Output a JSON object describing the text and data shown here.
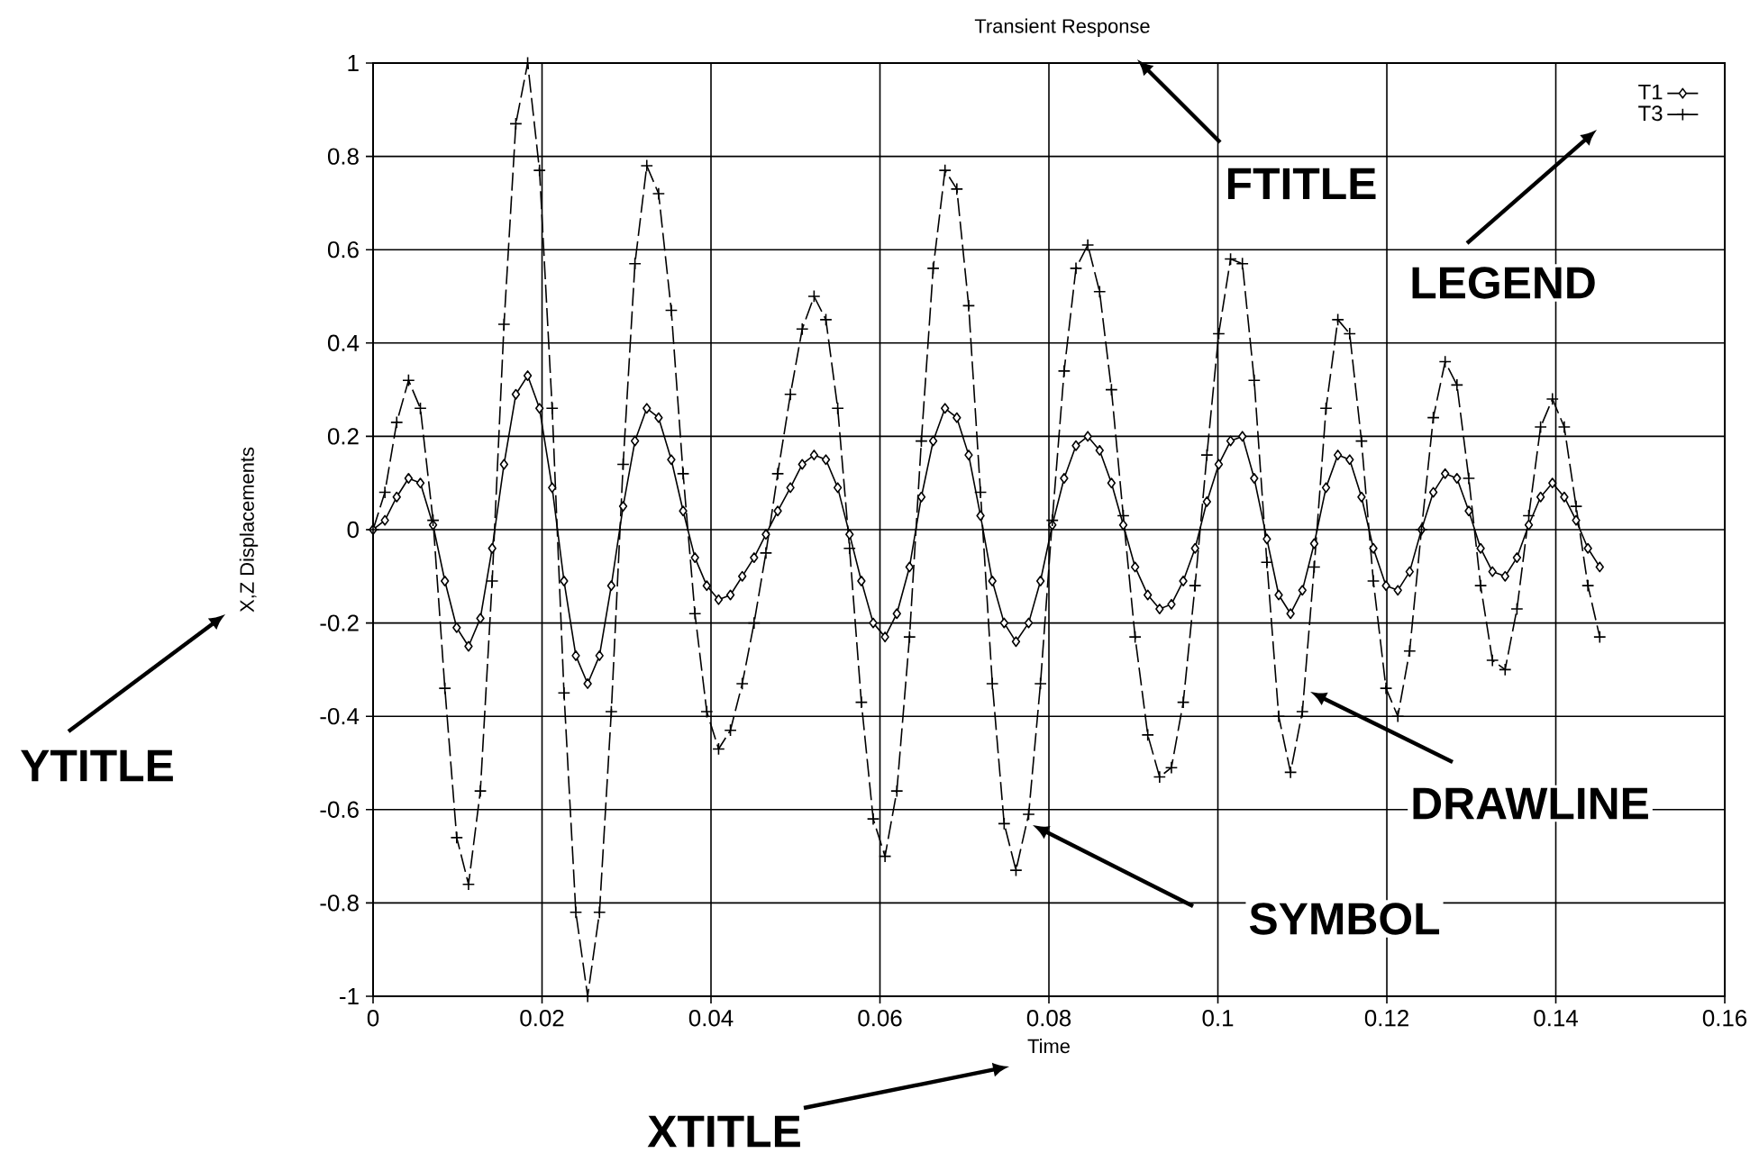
{
  "chart_data": {
    "type": "line",
    "title": "Transient Response",
    "xlabel": "Time",
    "ylabel": "X,Z Displacements",
    "x": [
      0,
      0.0014,
      0.0028,
      0.0042,
      0.0056,
      0.0071,
      0.0085,
      0.0099,
      0.0113,
      0.0127,
      0.0141,
      0.0155,
      0.0169,
      0.0183,
      0.0197,
      0.0212,
      0.0226,
      0.024,
      0.0254,
      0.0268,
      0.0282,
      0.0296,
      0.031,
      0.0324,
      0.0338,
      0.0353,
      0.0367,
      0.0381,
      0.0395,
      0.0409,
      0.0423,
      0.0437,
      0.0451,
      0.0465,
      0.0479,
      0.0494,
      0.0508,
      0.0522,
      0.0536,
      0.055,
      0.0564,
      0.0578,
      0.0592,
      0.0606,
      0.062,
      0.0635,
      0.0649,
      0.0663,
      0.0677,
      0.0691,
      0.0705,
      0.0719,
      0.0733,
      0.0747,
      0.0761,
      0.0776,
      0.079,
      0.0804,
      0.0818,
      0.0832,
      0.0846,
      0.086,
      0.0874,
      0.0888,
      0.0902,
      0.0917,
      0.0931,
      0.0945,
      0.0959,
      0.0973,
      0.0987,
      0.1001,
      0.1015,
      0.1029,
      0.1043,
      0.1058,
      0.1072,
      0.1086,
      0.11,
      0.1114,
      0.1128,
      0.1142,
      0.1156,
      0.117,
      0.1184,
      0.1199,
      0.1213,
      0.1227,
      0.1241,
      0.1255,
      0.1269,
      0.1283,
      0.1297,
      0.1311,
      0.1325,
      0.134,
      0.1354,
      0.1368,
      0.1382,
      0.1396,
      0.141,
      0.1424,
      0.1438,
      0.1452
    ],
    "series": [
      {
        "name": "T1",
        "color": "#000000",
        "marker": "diamond",
        "line_style": "solid",
        "values": [
          0,
          0.02,
          0.07,
          0.11,
          0.1,
          0.01,
          -0.11,
          -0.21,
          -0.25,
          -0.19,
          -0.04,
          0.14,
          0.29,
          0.33,
          0.26,
          0.09,
          -0.11,
          -0.27,
          -0.33,
          -0.27,
          -0.12,
          0.05,
          0.19,
          0.26,
          0.24,
          0.15,
          0.04,
          -0.06,
          -0.12,
          -0.15,
          -0.14,
          -0.1,
          -0.06,
          -0.01,
          0.04,
          0.09,
          0.14,
          0.16,
          0.15,
          0.09,
          -0.01,
          -0.11,
          -0.2,
          -0.23,
          -0.18,
          -0.08,
          0.07,
          0.19,
          0.26,
          0.24,
          0.16,
          0.03,
          -0.11,
          -0.2,
          -0.24,
          -0.2,
          -0.11,
          0.01,
          0.11,
          0.18,
          0.2,
          0.17,
          0.1,
          0.01,
          -0.08,
          -0.14,
          -0.17,
          -0.16,
          -0.11,
          -0.04,
          0.06,
          0.14,
          0.19,
          0.2,
          0.11,
          -0.02,
          -0.14,
          -0.18,
          -0.13,
          -0.03,
          0.09,
          0.16,
          0.15,
          0.07,
          -0.04,
          -0.12,
          -0.13,
          -0.09,
          0,
          0.08,
          0.12,
          0.11,
          0.04,
          -0.04,
          -0.09,
          -0.1,
          -0.06,
          0.01,
          0.07,
          0.1,
          0.07,
          0.02,
          -0.04,
          -0.08
        ]
      },
      {
        "name": "T3",
        "color": "#000000",
        "marker": "cross",
        "line_style": "dashed",
        "values": [
          0,
          0.08,
          0.23,
          0.32,
          0.26,
          0.02,
          -0.34,
          -0.66,
          -0.76,
          -0.56,
          -0.11,
          0.44,
          0.87,
          1,
          0.77,
          0.26,
          -0.35,
          -0.82,
          -1,
          -0.82,
          -0.39,
          0.14,
          0.57,
          0.78,
          0.72,
          0.47,
          0.12,
          -0.18,
          -0.39,
          -0.47,
          -0.43,
          -0.33,
          -0.2,
          -0.05,
          0.12,
          0.29,
          0.43,
          0.5,
          0.45,
          0.26,
          -0.04,
          -0.37,
          -0.62,
          -0.7,
          -0.56,
          -0.23,
          0.19,
          0.56,
          0.77,
          0.73,
          0.48,
          0.08,
          -0.33,
          -0.63,
          -0.73,
          -0.61,
          -0.33,
          0.02,
          0.34,
          0.56,
          0.61,
          0.51,
          0.3,
          0.03,
          -0.23,
          -0.44,
          -0.53,
          -0.51,
          -0.37,
          -0.12,
          0.16,
          0.42,
          0.58,
          0.57,
          0.32,
          -0.07,
          -0.4,
          -0.52,
          -0.39,
          -0.08,
          0.26,
          0.45,
          0.42,
          0.19,
          -0.11,
          -0.34,
          -0.4,
          -0.26,
          0,
          0.24,
          0.36,
          0.31,
          0.11,
          -0.12,
          -0.28,
          -0.3,
          -0.17,
          0.03,
          0.22,
          0.28,
          0.22,
          0.05,
          -0.12,
          -0.23
        ]
      }
    ],
    "xlim": [
      0,
      0.16
    ],
    "xticks": [
      0,
      0.02,
      0.04,
      0.06,
      0.08,
      0.1,
      0.12,
      0.14,
      0.16
    ],
    "ylim": [
      -1,
      1
    ],
    "yticks": [
      -1,
      -0.8,
      -0.6,
      -0.4,
      -0.2,
      0,
      0.2,
      0.4,
      0.6,
      0.8,
      1
    ],
    "grid": true,
    "legend": "top right",
    "annotations": [
      "FTITLE",
      "LEGEND",
      "YTITLE",
      "DRAWLINE",
      "SYMBOL",
      "XTITLE"
    ]
  }
}
